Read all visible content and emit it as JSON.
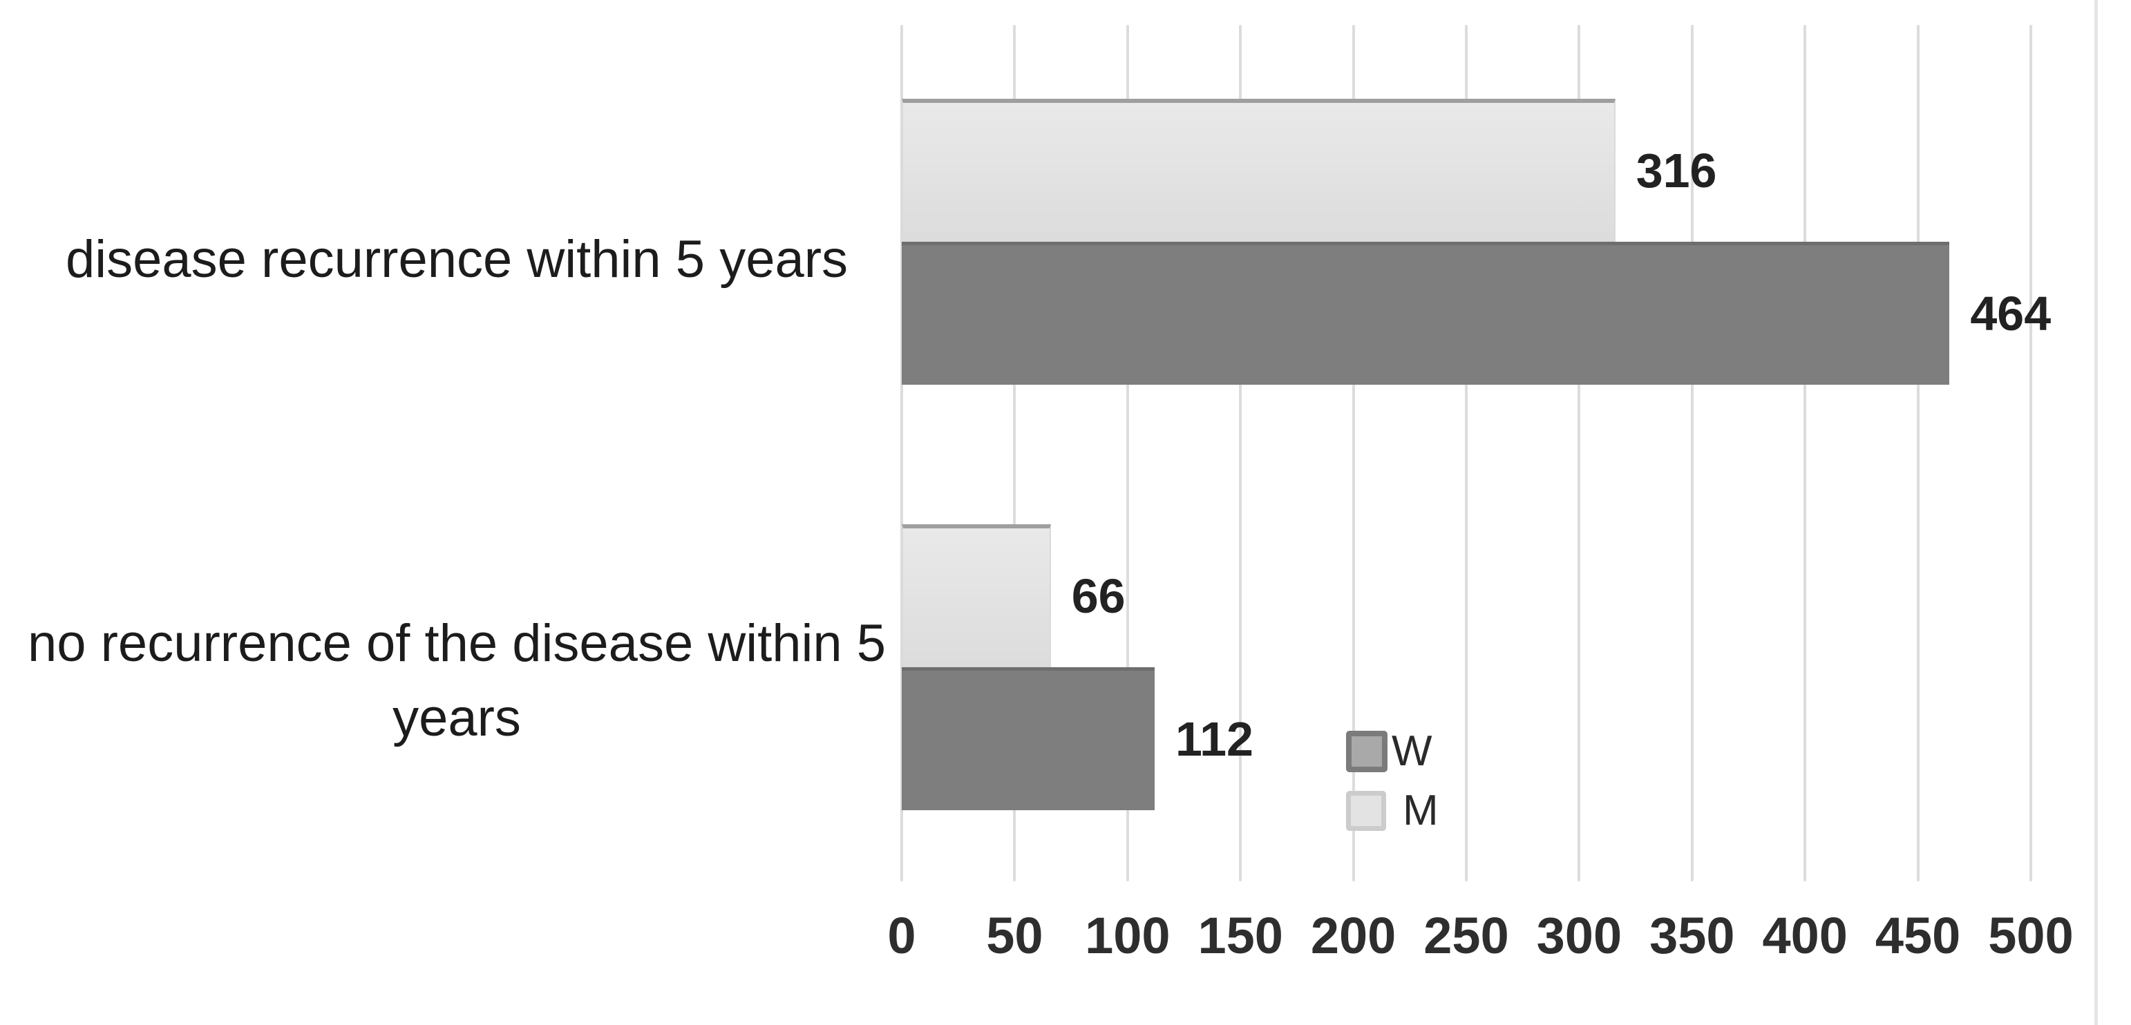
{
  "chart_data": {
    "type": "bar",
    "orientation": "horizontal",
    "title": "",
    "xlabel": "",
    "ylabel": "",
    "categories": [
      "disease recurrence within 5 years",
      "no recurrence of the disease within 5 years"
    ],
    "series": [
      {
        "name": "W",
        "color": "#7e7e7e",
        "values": [
          464,
          112
        ]
      },
      {
        "name": "M",
        "color": "#e2e2e2",
        "values": [
          316,
          66
        ]
      }
    ],
    "data_labels": [
      "316",
      "464",
      "66",
      "112"
    ],
    "x_axis": {
      "min": 0,
      "max": 500,
      "tick_step": 50,
      "ticks": [
        0,
        50,
        100,
        150,
        200,
        250,
        300,
        350,
        400,
        450,
        500
      ]
    },
    "grid": "vertical-only",
    "gridline_color": "#dcdcdc",
    "legend": {
      "position": "inside-bottom-center",
      "entries": [
        {
          "label": "W",
          "swatch_color": "#a9a9a9"
        },
        {
          "label": "M",
          "swatch_color": "#e3e3e3"
        }
      ]
    },
    "background_color": "#ffffff"
  }
}
